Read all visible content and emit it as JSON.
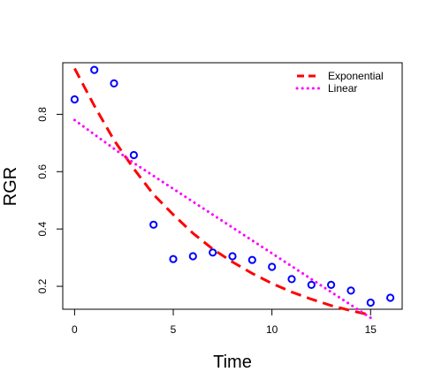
{
  "chart_data": {
    "type": "scatter",
    "title": "",
    "xlabel": "Time",
    "ylabel": "RGR",
    "xlim": [
      -0.6,
      16.6
    ],
    "ylim": [
      0.12,
      0.98
    ],
    "xticks": [
      0,
      5,
      10,
      15
    ],
    "yticks": [
      0.2,
      0.4,
      0.6,
      0.8
    ],
    "grid": false,
    "legend_position": "top-right",
    "points": {
      "color": "#0000ff",
      "x": [
        0,
        1,
        2,
        3,
        4,
        5,
        6,
        7,
        8,
        9,
        10,
        11,
        12,
        13,
        14,
        15,
        16
      ],
      "y": [
        0.852,
        0.955,
        0.908,
        0.658,
        0.415,
        0.295,
        0.305,
        0.318,
        0.305,
        0.292,
        0.268,
        0.225,
        0.205,
        0.205,
        0.185,
        0.143,
        0.16
      ]
    },
    "series": [
      {
        "name": "Exponential",
        "style": "dashed",
        "color": "#ff0000",
        "x": [
          0,
          1,
          2,
          3,
          4,
          5,
          6,
          7,
          8,
          9,
          10,
          11,
          12,
          13,
          14,
          15
        ],
        "y": [
          0.96,
          0.83,
          0.71,
          0.61,
          0.52,
          0.45,
          0.385,
          0.33,
          0.285,
          0.245,
          0.21,
          0.18,
          0.155,
          0.133,
          0.115,
          0.1
        ]
      },
      {
        "name": "Linear",
        "style": "dotted",
        "color": "#ff00ff",
        "x": [
          0,
          1,
          2,
          3,
          4,
          5,
          6,
          7,
          8,
          9,
          10,
          11,
          12,
          13,
          14,
          15
        ],
        "y": [
          0.78,
          0.73,
          0.68,
          0.63,
          0.585,
          0.54,
          0.495,
          0.45,
          0.405,
          0.36,
          0.315,
          0.27,
          0.225,
          0.18,
          0.135,
          0.09
        ]
      }
    ]
  }
}
